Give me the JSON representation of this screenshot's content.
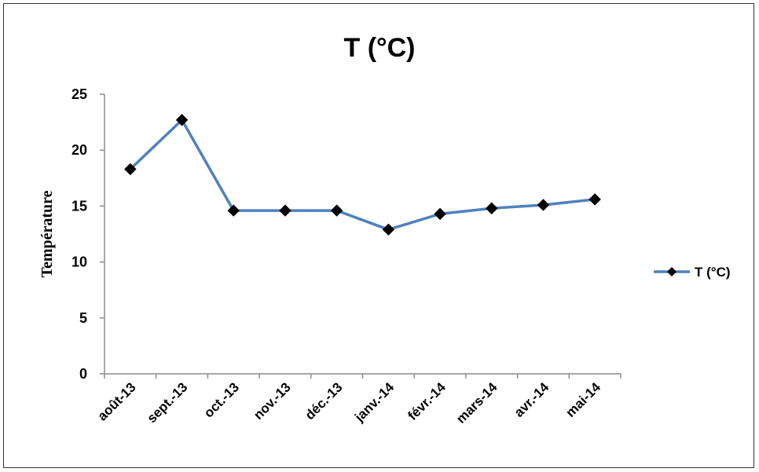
{
  "chart_data": {
    "type": "line",
    "title": "T (°C)",
    "ylabel": "Température",
    "xlabel": "",
    "categories": [
      "août-13",
      "sept.-13",
      "oct.-13",
      "nov.-13",
      "déc.-13",
      "janv.-14",
      "févr.-14",
      "mars-14",
      "avr.-14",
      "mai-14"
    ],
    "series": [
      {
        "name": "T (°C)",
        "values": [
          18.3,
          22.7,
          14.6,
          14.6,
          14.6,
          12.9,
          14.3,
          14.8,
          15.1,
          15.6
        ],
        "color": "#4F81BD",
        "marker": "diamond",
        "marker_color": "#000000"
      }
    ],
    "ylim": [
      0,
      25
    ],
    "yticks": [
      0,
      5,
      10,
      15,
      20,
      25
    ],
    "grid": false,
    "legend_position": "right"
  }
}
